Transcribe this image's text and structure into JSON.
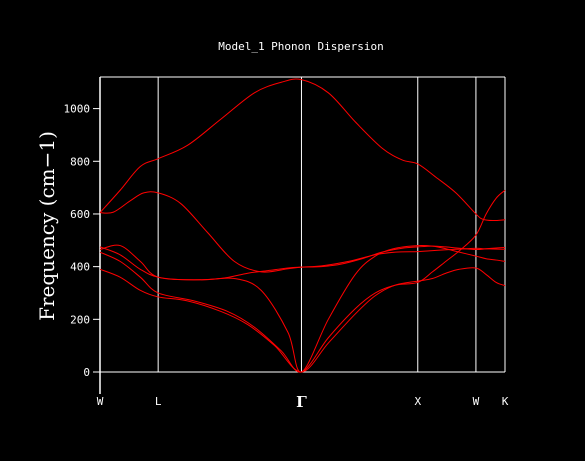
{
  "chart_data": {
    "type": "line",
    "title": "Model_1 Phonon Dispersion",
    "ylabel": "Frequency (cm−1)",
    "xlabel": "",
    "ylim": [
      0,
      1120
    ],
    "yticks": [
      0,
      200,
      400,
      600,
      800,
      1000
    ],
    "ytick_labels": [
      "0",
      "200",
      "400",
      "600",
      "800",
      "1000"
    ],
    "grid": false,
    "legend": "none",
    "colors": {
      "background": "#000000",
      "axes": "#ffffff",
      "series": "#ff0000"
    },
    "kpoints": [
      {
        "label": "W",
        "x": 0
      },
      {
        "label": "L",
        "x": 0.866
      },
      {
        "label": "Γ",
        "x": 3.0
      },
      {
        "label": "X",
        "x": 4.732
      },
      {
        "label": "W",
        "x": 5.598
      },
      {
        "label": "K",
        "x": 6.031
      }
    ],
    "series": [
      {
        "x": [
          0,
          0.2,
          0.45,
          0.65,
          0.866,
          1.2,
          1.6,
          2.0,
          2.4,
          2.8,
          3.0,
          3.3,
          3.7,
          4.1,
          4.4,
          4.732,
          4.9,
          5.1,
          5.3,
          5.598,
          5.7,
          5.85,
          6.031
        ],
        "values": [
          605,
          607,
          650,
          680,
          680,
          640,
          530,
          420,
          380,
          392,
          398,
          403,
          420,
          445,
          455,
          457,
          460,
          463,
          466,
          470,
          468,
          467,
          466
        ]
      },
      {
        "x": [
          0,
          0.3,
          0.6,
          0.866,
          1.3,
          1.8,
          2.3,
          2.7,
          3.0,
          3.4,
          3.8,
          4.2,
          4.5,
          4.732,
          5.0,
          5.3,
          5.598,
          5.7,
          5.85,
          6.031
        ],
        "values": [
          605,
          690,
          780,
          810,
          860,
          960,
          1060,
          1100,
          1110,
          1060,
          950,
          850,
          805,
          790,
          740,
          680,
          600,
          580,
          575,
          578
        ]
      },
      {
        "x": [
          0,
          0.3,
          0.6,
          0.866,
          1.3,
          1.8,
          2.2,
          2.5,
          2.8,
          3.0,
          3.3,
          3.6,
          3.9,
          4.2,
          4.5,
          4.732,
          4.95,
          5.15,
          5.35,
          5.598,
          5.75,
          5.9,
          6.031
        ],
        "values": [
          475,
          445,
          390,
          360,
          350,
          355,
          375,
          385,
          395,
          398,
          400,
          410,
          430,
          455,
          470,
          475,
          478,
          475,
          470,
          465,
          468,
          471,
          473
        ]
      },
      {
        "x": [
          0,
          0.3,
          0.6,
          0.866,
          1.5,
          2.0,
          2.4,
          2.8,
          3.0,
          3.4,
          3.8,
          4.1,
          4.4,
          4.732,
          4.95,
          5.15,
          5.35,
          5.598,
          5.75,
          5.9,
          6.031
        ],
        "values": [
          465,
          480,
          420,
          360,
          350,
          355,
          310,
          150,
          0,
          200,
          370,
          440,
          470,
          480,
          478,
          468,
          455,
          440,
          430,
          425,
          420
        ]
      },
      {
        "x": [
          0,
          0.3,
          0.6,
          0.866,
          1.4,
          1.9,
          2.3,
          2.7,
          3.0,
          3.4,
          3.8,
          4.1,
          4.4,
          4.732,
          4.95,
          5.15,
          5.35,
          5.598,
          5.75,
          5.9,
          6.031
        ],
        "values": [
          455,
          420,
          360,
          300,
          270,
          230,
          170,
          80,
          0,
          130,
          240,
          300,
          330,
          340,
          380,
          420,
          460,
          520,
          600,
          660,
          690
        ]
      },
      {
        "x": [
          0,
          0.3,
          0.6,
          0.866,
          1.3,
          1.8,
          2.2,
          2.6,
          3.0,
          3.4,
          3.8,
          4.1,
          4.4,
          4.732,
          4.95,
          5.15,
          5.35,
          5.598,
          5.75,
          5.9,
          6.031
        ],
        "values": [
          390,
          360,
          310,
          285,
          270,
          230,
          180,
          100,
          0,
          110,
          220,
          290,
          330,
          345,
          355,
          375,
          390,
          395,
          370,
          340,
          328
        ]
      }
    ]
  }
}
